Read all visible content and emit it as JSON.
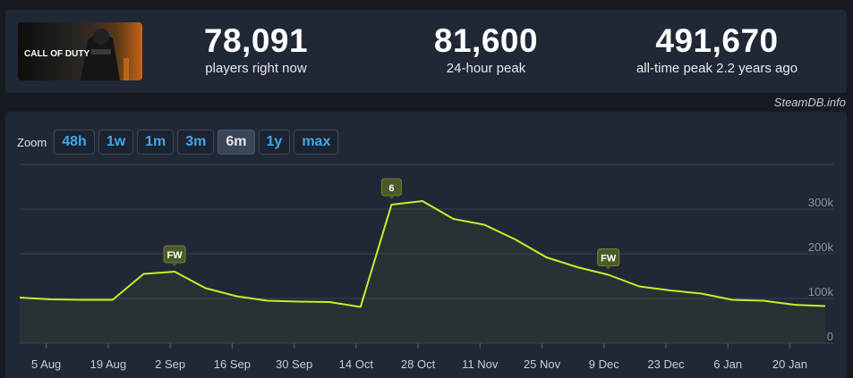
{
  "stats": {
    "current": {
      "value": "78,091",
      "label": "players right now"
    },
    "peak24": {
      "value": "81,600",
      "label": "24-hour peak"
    },
    "alltime": {
      "value": "491,670",
      "label": "all-time peak 2.2 years ago"
    }
  },
  "game_logo_text": "CALL OF DUTY",
  "watermark": "SteamDB.info",
  "zoom": {
    "label": "Zoom",
    "buttons": [
      "48h",
      "1w",
      "1m",
      "3m",
      "6m",
      "1y",
      "max"
    ],
    "active": "6m"
  },
  "colors": {
    "line": "#c4f02a",
    "grid": "#3a4050",
    "marker_bg": "#4b5a2a"
  },
  "chart_data": {
    "type": "line",
    "x": [
      "2023-07-30",
      "2023-08-06",
      "2023-08-13",
      "2023-08-20",
      "2023-08-27",
      "2023-09-03",
      "2023-09-10",
      "2023-09-17",
      "2023-09-24",
      "2023-10-01",
      "2023-10-08",
      "2023-10-15",
      "2023-10-22",
      "2023-10-29",
      "2023-11-05",
      "2023-11-12",
      "2023-11-19",
      "2023-11-26",
      "2023-12-03",
      "2023-12-10",
      "2023-12-17",
      "2023-12-24",
      "2023-12-31",
      "2024-01-07",
      "2024-01-14",
      "2024-01-21",
      "2024-01-28"
    ],
    "y": [
      102000,
      98000,
      97000,
      97000,
      155000,
      160000,
      123000,
      105000,
      95000,
      93000,
      92000,
      81000,
      310000,
      318000,
      278000,
      265000,
      232000,
      192000,
      170000,
      153000,
      127000,
      118000,
      111000,
      97000,
      95000,
      86000,
      83000
    ],
    "xticks": [
      "5 Aug",
      "19 Aug",
      "2 Sep",
      "16 Sep",
      "30 Sep",
      "14 Oct",
      "28 Oct",
      "11 Nov",
      "25 Nov",
      "9 Dec",
      "23 Dec",
      "6 Jan",
      "20 Jan"
    ],
    "xtick_dates": [
      "2023-08-05",
      "2023-08-19",
      "2023-09-02",
      "2023-09-16",
      "2023-09-30",
      "2023-10-14",
      "2023-10-28",
      "2023-11-11",
      "2023-11-25",
      "2023-12-09",
      "2023-12-23",
      "2024-01-06",
      "2024-01-20"
    ],
    "yticks": [
      {
        "value": 0,
        "label": "0"
      },
      {
        "value": 100000,
        "label": "100k"
      },
      {
        "value": 200000,
        "label": "200k"
      },
      {
        "value": 300000,
        "label": "300k"
      }
    ],
    "ylim": [
      0,
      400000
    ],
    "xlim": [
      "2023-07-30",
      "2024-01-28"
    ],
    "annotations": [
      {
        "date": "2023-09-03",
        "text": "FW"
      },
      {
        "date": "2023-10-22",
        "text": "6"
      },
      {
        "date": "2023-12-10",
        "text": "FW"
      }
    ],
    "grid": true
  }
}
